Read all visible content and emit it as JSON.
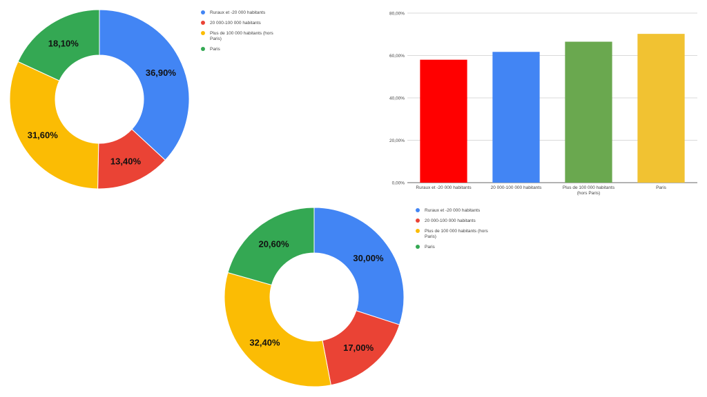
{
  "colors": {
    "blue": "#4285F4",
    "red": "#EA4335",
    "yellow": "#FBBC04",
    "green": "#34A853",
    "bar_red": "#FF0000",
    "bar_blue": "#4285F4",
    "bar_green": "#6AA84F",
    "bar_yellow": "#F1C232"
  },
  "legend_top": [
    {
      "label": "Ruraux et -20 000 habitants",
      "color": "#4285F4"
    },
    {
      "label": "20 000-100 000 habitants",
      "color": "#EA4335"
    },
    {
      "label": "Plus de 100 000 habitants (hors Paris)",
      "color": "#FBBC04"
    },
    {
      "label": "Paris",
      "color": "#34A853"
    }
  ],
  "legend_bottom": [
    {
      "label": "Ruraux et -20 000 habitants",
      "color": "#4285F4"
    },
    {
      "label": "20 000-100 000 habitants",
      "color": "#EA4335"
    },
    {
      "label": "Plus de 100 000 habitants (hors Paris)",
      "color": "#FBBC04"
    },
    {
      "label": "Paris",
      "color": "#34A853"
    }
  ],
  "chart_data": [
    {
      "type": "pie",
      "donut": true,
      "categories": [
        "Ruraux et -20 000 habitants",
        "20 000-100 000 habitants",
        "Plus de 100 000 habitants (hors Paris)",
        "Paris"
      ],
      "values": [
        36.9,
        13.4,
        31.6,
        18.1
      ],
      "data_labels": [
        "36,90%",
        "13,40%",
        "31,60%",
        "18,10%"
      ],
      "colors": [
        "#4285F4",
        "#EA4335",
        "#FBBC04",
        "#34A853"
      ],
      "legend": "right"
    },
    {
      "type": "bar",
      "categories": [
        "Ruraux et -20 000 habitants",
        "20 000-100 000 habitants",
        "Plus de 100 000 habitants (hors Paris)",
        "Paris"
      ],
      "category_labels": [
        [
          "Ruraux et -20 000 habitants"
        ],
        [
          "20 000-100 000 habitants"
        ],
        [
          "Plus de 100 000 habitants",
          "(hors Paris)"
        ],
        [
          "Paris"
        ]
      ],
      "values": [
        58.0,
        61.7,
        66.5,
        70.2
      ],
      "colors": [
        "#FF0000",
        "#4285F4",
        "#6AA84F",
        "#F1C232"
      ],
      "ylim": [
        0,
        80
      ],
      "yticks": [
        0,
        20,
        40,
        60,
        80
      ],
      "ytick_labels": [
        "0,00%",
        "20,00%",
        "40,00%",
        "60,00%",
        "80,00%"
      ],
      "grid": true
    },
    {
      "type": "pie",
      "donut": true,
      "categories": [
        "Ruraux et -20 000 habitants",
        "20 000-100 000 habitants",
        "Plus de 100 000 habitants (hors Paris)",
        "Paris"
      ],
      "values": [
        30.0,
        17.0,
        32.4,
        20.6
      ],
      "data_labels": [
        "30,00%",
        "17,00%",
        "32,40%",
        "20,60%"
      ],
      "colors": [
        "#4285F4",
        "#EA4335",
        "#FBBC04",
        "#34A853"
      ],
      "legend": "right"
    }
  ]
}
